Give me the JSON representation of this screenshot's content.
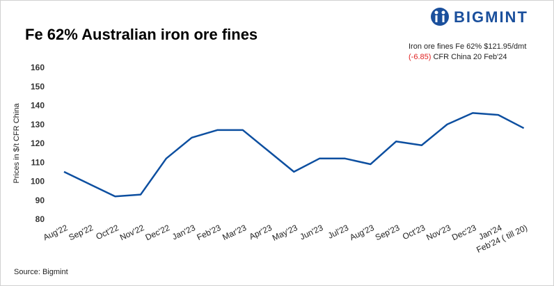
{
  "brand": "BIGMINT",
  "chart_data": {
    "type": "line",
    "title": "Fe 62% Australian iron ore fines",
    "annotation": {
      "line1": "Iron ore fines Fe 62% $121.95/dmt",
      "change": "(-6.85)",
      "rest": " CFR China 20 Feb'24"
    },
    "y_label": "Prices in $/t CFR China",
    "source": "Source: Bigmint",
    "categories": [
      "Aug'22",
      "Sep'22",
      "Oct'22",
      "Nov'22",
      "Dec'22",
      "Jan'23",
      "Feb'23",
      "Mar'23",
      "Apr'23",
      "May'23",
      "Jun'23",
      "Jul'23",
      "Aug'23",
      "Sep'23",
      "Oct'23",
      "Nov'23",
      "Dec'23",
      "Jan'24",
      "Feb'24 ( till 20)"
    ],
    "values": [
      105,
      98.5,
      92,
      93,
      112,
      123,
      127,
      127,
      116,
      105,
      112,
      112,
      109,
      121,
      119,
      130,
      136,
      135,
      128
    ],
    "color": "#0d4fa0",
    "ylim": [
      80,
      160
    ],
    "yticks": [
      80,
      90,
      100,
      110,
      120,
      130,
      140,
      150,
      160
    ],
    "grid": false
  }
}
